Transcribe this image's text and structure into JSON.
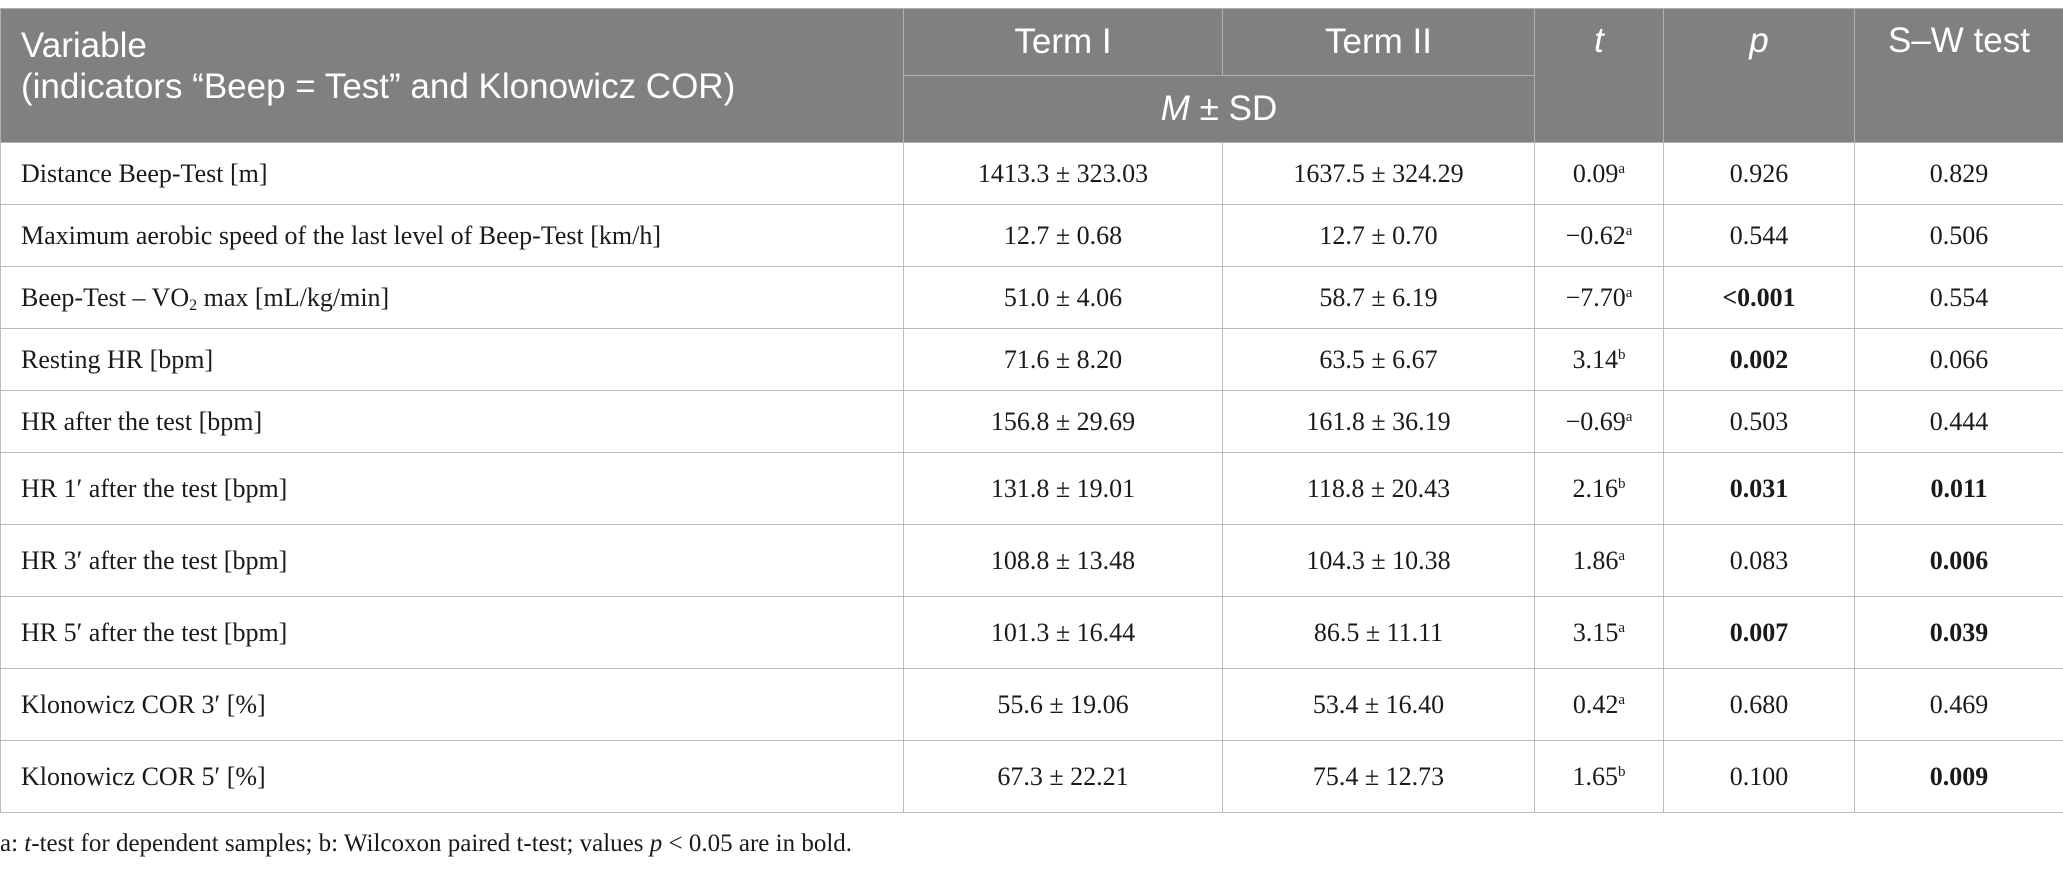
{
  "header": {
    "variable_line1": "Variable",
    "variable_line2": "(indicators “Beep = Test” and Klonowicz COR)",
    "term1": "Term I",
    "term2": "Term II",
    "t": "t",
    "p": "p",
    "sw": "S–W test",
    "msd_m": "M",
    "msd_rest": " ± SD"
  },
  "rows": [
    {
      "label": "Distance Beep-Test [m]",
      "term1": "1413.3 ± 323.03",
      "term2": "1637.5 ± 324.29",
      "t": "0.09",
      "t_sup": "a",
      "p": "0.926",
      "p_bold": false,
      "sw": "0.829",
      "sw_bold": false
    },
    {
      "label": "Maximum aerobic speed of the last level of Beep-Test [km/h]",
      "term1": "12.7 ± 0.68",
      "term2": "12.7 ± 0.70",
      "t": "−0.62",
      "t_sup": "a",
      "p": "0.544",
      "p_bold": false,
      "sw": "0.506",
      "sw_bold": false
    },
    {
      "label_pre": "Beep-Test – VO",
      "label_sub": "2",
      "label_post": " max [mL/kg/min]",
      "term1": "51.0 ± 4.06",
      "term2": "58.7 ± 6.19",
      "t": "−7.70",
      "t_sup": "a",
      "p": "<0.001",
      "p_bold": true,
      "sw": "0.554",
      "sw_bold": false
    },
    {
      "label": "Resting HR [bpm]",
      "term1": "71.6 ± 8.20",
      "term2": "63.5 ± 6.67",
      "t": "3.14",
      "t_sup": "b",
      "p": "0.002",
      "p_bold": true,
      "sw": "0.066",
      "sw_bold": false
    },
    {
      "label": "HR after the test [bpm]",
      "term1": "156.8 ± 29.69",
      "term2": "161.8 ± 36.19",
      "t": "−0.69",
      "t_sup": "a",
      "p": "0.503",
      "p_bold": false,
      "sw": "0.444",
      "sw_bold": false
    },
    {
      "label": "HR 1′ after the test [bpm]",
      "term1": "131.8 ± 19.01",
      "term2": "118.8 ± 20.43",
      "t": "2.16",
      "t_sup": "b",
      "p": "0.031",
      "p_bold": true,
      "sw": "0.011",
      "sw_bold": true
    },
    {
      "label": "HR 3′ after the test [bpm]",
      "term1": "108.8 ± 13.48",
      "term2": "104.3 ± 10.38",
      "t": "1.86",
      "t_sup": "a",
      "p": "0.083",
      "p_bold": false,
      "sw": "0.006",
      "sw_bold": true
    },
    {
      "label": "HR 5′ after the test [bpm]",
      "term1": "101.3 ± 16.44",
      "term2": "86.5 ± 11.11",
      "t": "3.15",
      "t_sup": "a",
      "p": "0.007",
      "p_bold": true,
      "sw": "0.039",
      "sw_bold": true
    },
    {
      "label": "Klonowicz COR 3′ [%]",
      "term1": "55.6 ± 19.06",
      "term2": "53.4 ± 16.40",
      "t": "0.42",
      "t_sup": "a",
      "p": "0.680",
      "p_bold": false,
      "sw": "0.469",
      "sw_bold": false
    },
    {
      "label": "Klonowicz COR 5′ [%]",
      "term1": "67.3 ± 22.21",
      "term2": "75.4 ± 12.73",
      "t": "1.65",
      "t_sup": "b",
      "p": "0.100",
      "p_bold": false,
      "sw": "0.009",
      "sw_bold": true
    }
  ],
  "footnote": {
    "part1": "a: ",
    "t_italic": "t",
    "part2": "-test for dependent samples; b: Wilcoxon paired t-test; values ",
    "p_italic": "p",
    "part3": " < 0.05 are in bold."
  }
}
